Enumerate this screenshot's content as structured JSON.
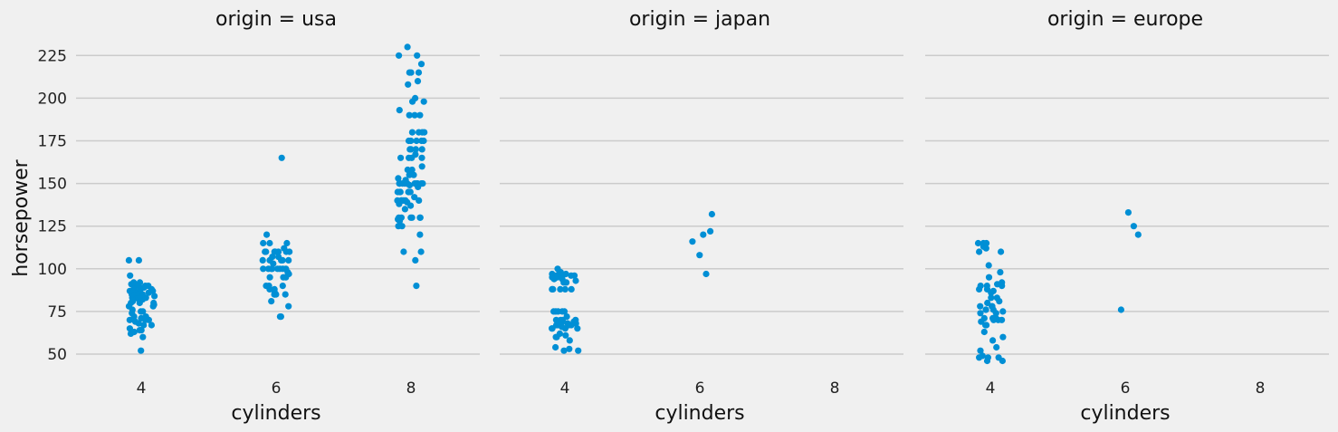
{
  "chart_data": {
    "type": "scatter",
    "kind": "strip (jittered categorical scatter)",
    "facet_by": "origin",
    "xlabel": "cylinders",
    "ylabel": "horsepower",
    "x_categories": [
      "4",
      "6",
      "8"
    ],
    "y_ticks": [
      50,
      75,
      100,
      125,
      150,
      175,
      200,
      225
    ],
    "ylim": [
      37,
      235
    ],
    "grid": "horizontal",
    "marker_color": "#008fd5",
    "background_color": "#f0f0f0",
    "panels": [
      {
        "title": "origin = usa",
        "points": {
          "4": [
            52,
            60,
            62,
            63,
            64,
            64,
            65,
            67,
            67,
            68,
            69,
            70,
            70,
            70,
            71,
            72,
            72,
            74,
            75,
            75,
            76,
            78,
            78,
            79,
            80,
            80,
            80,
            81,
            82,
            82,
            83,
            83,
            83,
            84,
            84,
            85,
            85,
            85,
            85,
            86,
            86,
            86,
            87,
            87,
            88,
            88,
            88,
            89,
            89,
            90,
            90,
            90,
            91,
            92,
            92,
            96,
            105,
            105
          ],
          "6": [
            72,
            72,
            78,
            81,
            85,
            85,
            85,
            85,
            86,
            88,
            88,
            90,
            90,
            90,
            95,
            95,
            95,
            97,
            98,
            100,
            100,
            100,
            100,
            100,
            100,
            100,
            100,
            103,
            105,
            105,
            105,
            105,
            105,
            107,
            107,
            110,
            110,
            110,
            110,
            110,
            110,
            110,
            110,
            112,
            115,
            115,
            115,
            120,
            165
          ],
          "8": [
            90,
            105,
            110,
            110,
            120,
            125,
            125,
            128,
            129,
            130,
            130,
            130,
            130,
            130,
            130,
            135,
            137,
            138,
            139,
            140,
            140,
            140,
            140,
            140,
            140,
            142,
            145,
            145,
            145,
            145,
            145,
            145,
            148,
            149,
            150,
            150,
            150,
            150,
            150,
            150,
            150,
            150,
            150,
            150,
            150,
            150,
            152,
            153,
            155,
            155,
            158,
            158,
            160,
            165,
            165,
            165,
            165,
            167,
            170,
            170,
            170,
            170,
            175,
            175,
            175,
            175,
            175,
            180,
            180,
            180,
            180,
            190,
            190,
            190,
            193,
            198,
            198,
            200,
            208,
            210,
            215,
            215,
            215,
            220,
            225,
            225,
            230
          ]
        }
      },
      {
        "title": "origin = japan",
        "points": {
          "4": [
            52,
            52,
            53,
            54,
            58,
            60,
            60,
            61,
            62,
            65,
            65,
            65,
            65,
            66,
            67,
            67,
            67,
            67,
            68,
            68,
            68,
            69,
            69,
            70,
            70,
            70,
            70,
            72,
            75,
            75,
            75,
            75,
            75,
            88,
            88,
            88,
            88,
            88,
            92,
            92,
            93,
            94,
            94,
            95,
            95,
            95,
            96,
            96,
            96,
            97,
            97,
            97,
            98,
            100
          ],
          "6": [
            97,
            108,
            116,
            120,
            122,
            132
          ]
        }
      },
      {
        "title": "origin = europe",
        "points": {
          "4": [
            46,
            46,
            48,
            48,
            48,
            49,
            52,
            54,
            58,
            60,
            63,
            67,
            67,
            69,
            70,
            70,
            70,
            71,
            71,
            71,
            74,
            74,
            75,
            76,
            76,
            76,
            78,
            78,
            78,
            80,
            81,
            83,
            83,
            86,
            87,
            88,
            88,
            90,
            90,
            90,
            91,
            92,
            95,
            98,
            102,
            110,
            110,
            112,
            113,
            115,
            115,
            115
          ],
          "6": [
            76,
            120,
            125,
            133
          ]
        }
      }
    ]
  }
}
